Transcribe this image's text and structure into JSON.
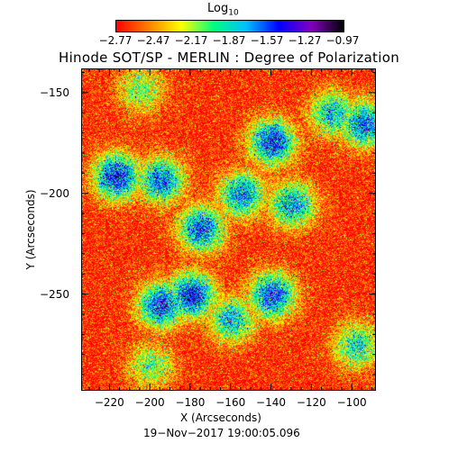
{
  "chart_data": {
    "type": "heatmap",
    "title": "Hinode SOT/SP - MERLIN : Degree of Polarization",
    "colorbar": {
      "label_main": "Log",
      "label_sub": "10",
      "ticks": [
        "−2.77",
        "−2.47",
        "−2.17",
        "−1.87",
        "−1.57",
        "−1.27",
        "−0.97"
      ],
      "tick_values": [
        -2.77,
        -2.47,
        -2.17,
        -1.87,
        -1.57,
        -1.27,
        -0.97
      ],
      "range": [
        -2.77,
        -0.97
      ],
      "colors": [
        "#ff0000",
        "#ff8000",
        "#ffff00",
        "#00ff80",
        "#00c0ff",
        "#0000ff",
        "#8000c0",
        "#000000"
      ]
    },
    "xlabel": "X (Arcseconds)",
    "ylabel": "Y (Arcseconds)",
    "xlim": [
      -234,
      -88
    ],
    "ylim": [
      -298,
      -138
    ],
    "xticks": [
      "−220",
      "−200",
      "−180",
      "−160",
      "−140",
      "−120",
      "−100"
    ],
    "xtick_values": [
      -220,
      -200,
      -180,
      -160,
      -140,
      -120,
      -100
    ],
    "yticks": [
      "−150",
      "−200",
      "−250"
    ],
    "ytick_values": [
      -150,
      -200,
      -250
    ],
    "timestamp": "19−Nov−2017 19:00:05.096",
    "background_level": -2.72,
    "strong_regions": [
      {
        "x": -217,
        "y": -191,
        "level": -1.3
      },
      {
        "x": -195,
        "y": -193,
        "level": -1.5
      },
      {
        "x": -175,
        "y": -217,
        "level": -1.45
      },
      {
        "x": -155,
        "y": -200,
        "level": -1.55
      },
      {
        "x": -140,
        "y": -174,
        "level": -1.35
      },
      {
        "x": -130,
        "y": -205,
        "level": -1.6
      },
      {
        "x": -180,
        "y": -250,
        "level": -1.3
      },
      {
        "x": -195,
        "y": -255,
        "level": -1.4
      },
      {
        "x": -140,
        "y": -250,
        "level": -1.4
      },
      {
        "x": -160,
        "y": -262,
        "level": -1.7
      },
      {
        "x": -110,
        "y": -160,
        "level": -1.7
      },
      {
        "x": -95,
        "y": -165,
        "level": -1.5
      },
      {
        "x": -98,
        "y": -275,
        "level": -1.8
      },
      {
        "x": -200,
        "y": -285,
        "level": -2.0
      },
      {
        "x": -205,
        "y": -148,
        "level": -2.0
      }
    ]
  }
}
